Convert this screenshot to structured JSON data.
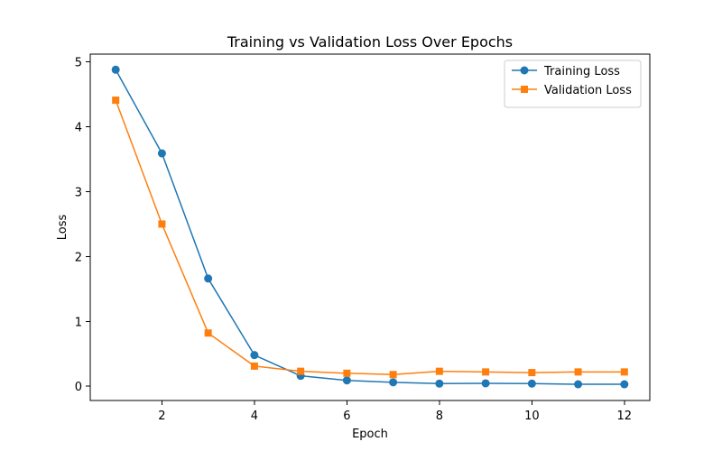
{
  "chart_data": {
    "type": "line",
    "title": "Training vs Validation Loss Over Epochs",
    "xlabel": "Epoch",
    "ylabel": "Loss",
    "x": [
      1,
      2,
      3,
      4,
      5,
      6,
      7,
      8,
      9,
      10,
      11,
      12
    ],
    "xlim": [
      0.45,
      12.55
    ],
    "ylim": [
      -0.22,
      5.12
    ],
    "xticks": [
      2,
      4,
      6,
      8,
      10,
      12
    ],
    "yticks": [
      0,
      1,
      2,
      3,
      4,
      5
    ],
    "grid": false,
    "legend_position": "top-right",
    "series": [
      {
        "name": "Training Loss",
        "color": "#1f77b4",
        "marker": "circle",
        "values": [
          4.88,
          3.59,
          1.66,
          0.48,
          0.16,
          0.09,
          0.06,
          0.04,
          0.045,
          0.04,
          0.03,
          0.03
        ]
      },
      {
        "name": "Validation Loss",
        "color": "#ff7f0e",
        "marker": "square",
        "values": [
          4.41,
          2.5,
          0.82,
          0.31,
          0.23,
          0.2,
          0.18,
          0.23,
          0.22,
          0.21,
          0.22,
          0.22
        ]
      }
    ]
  }
}
